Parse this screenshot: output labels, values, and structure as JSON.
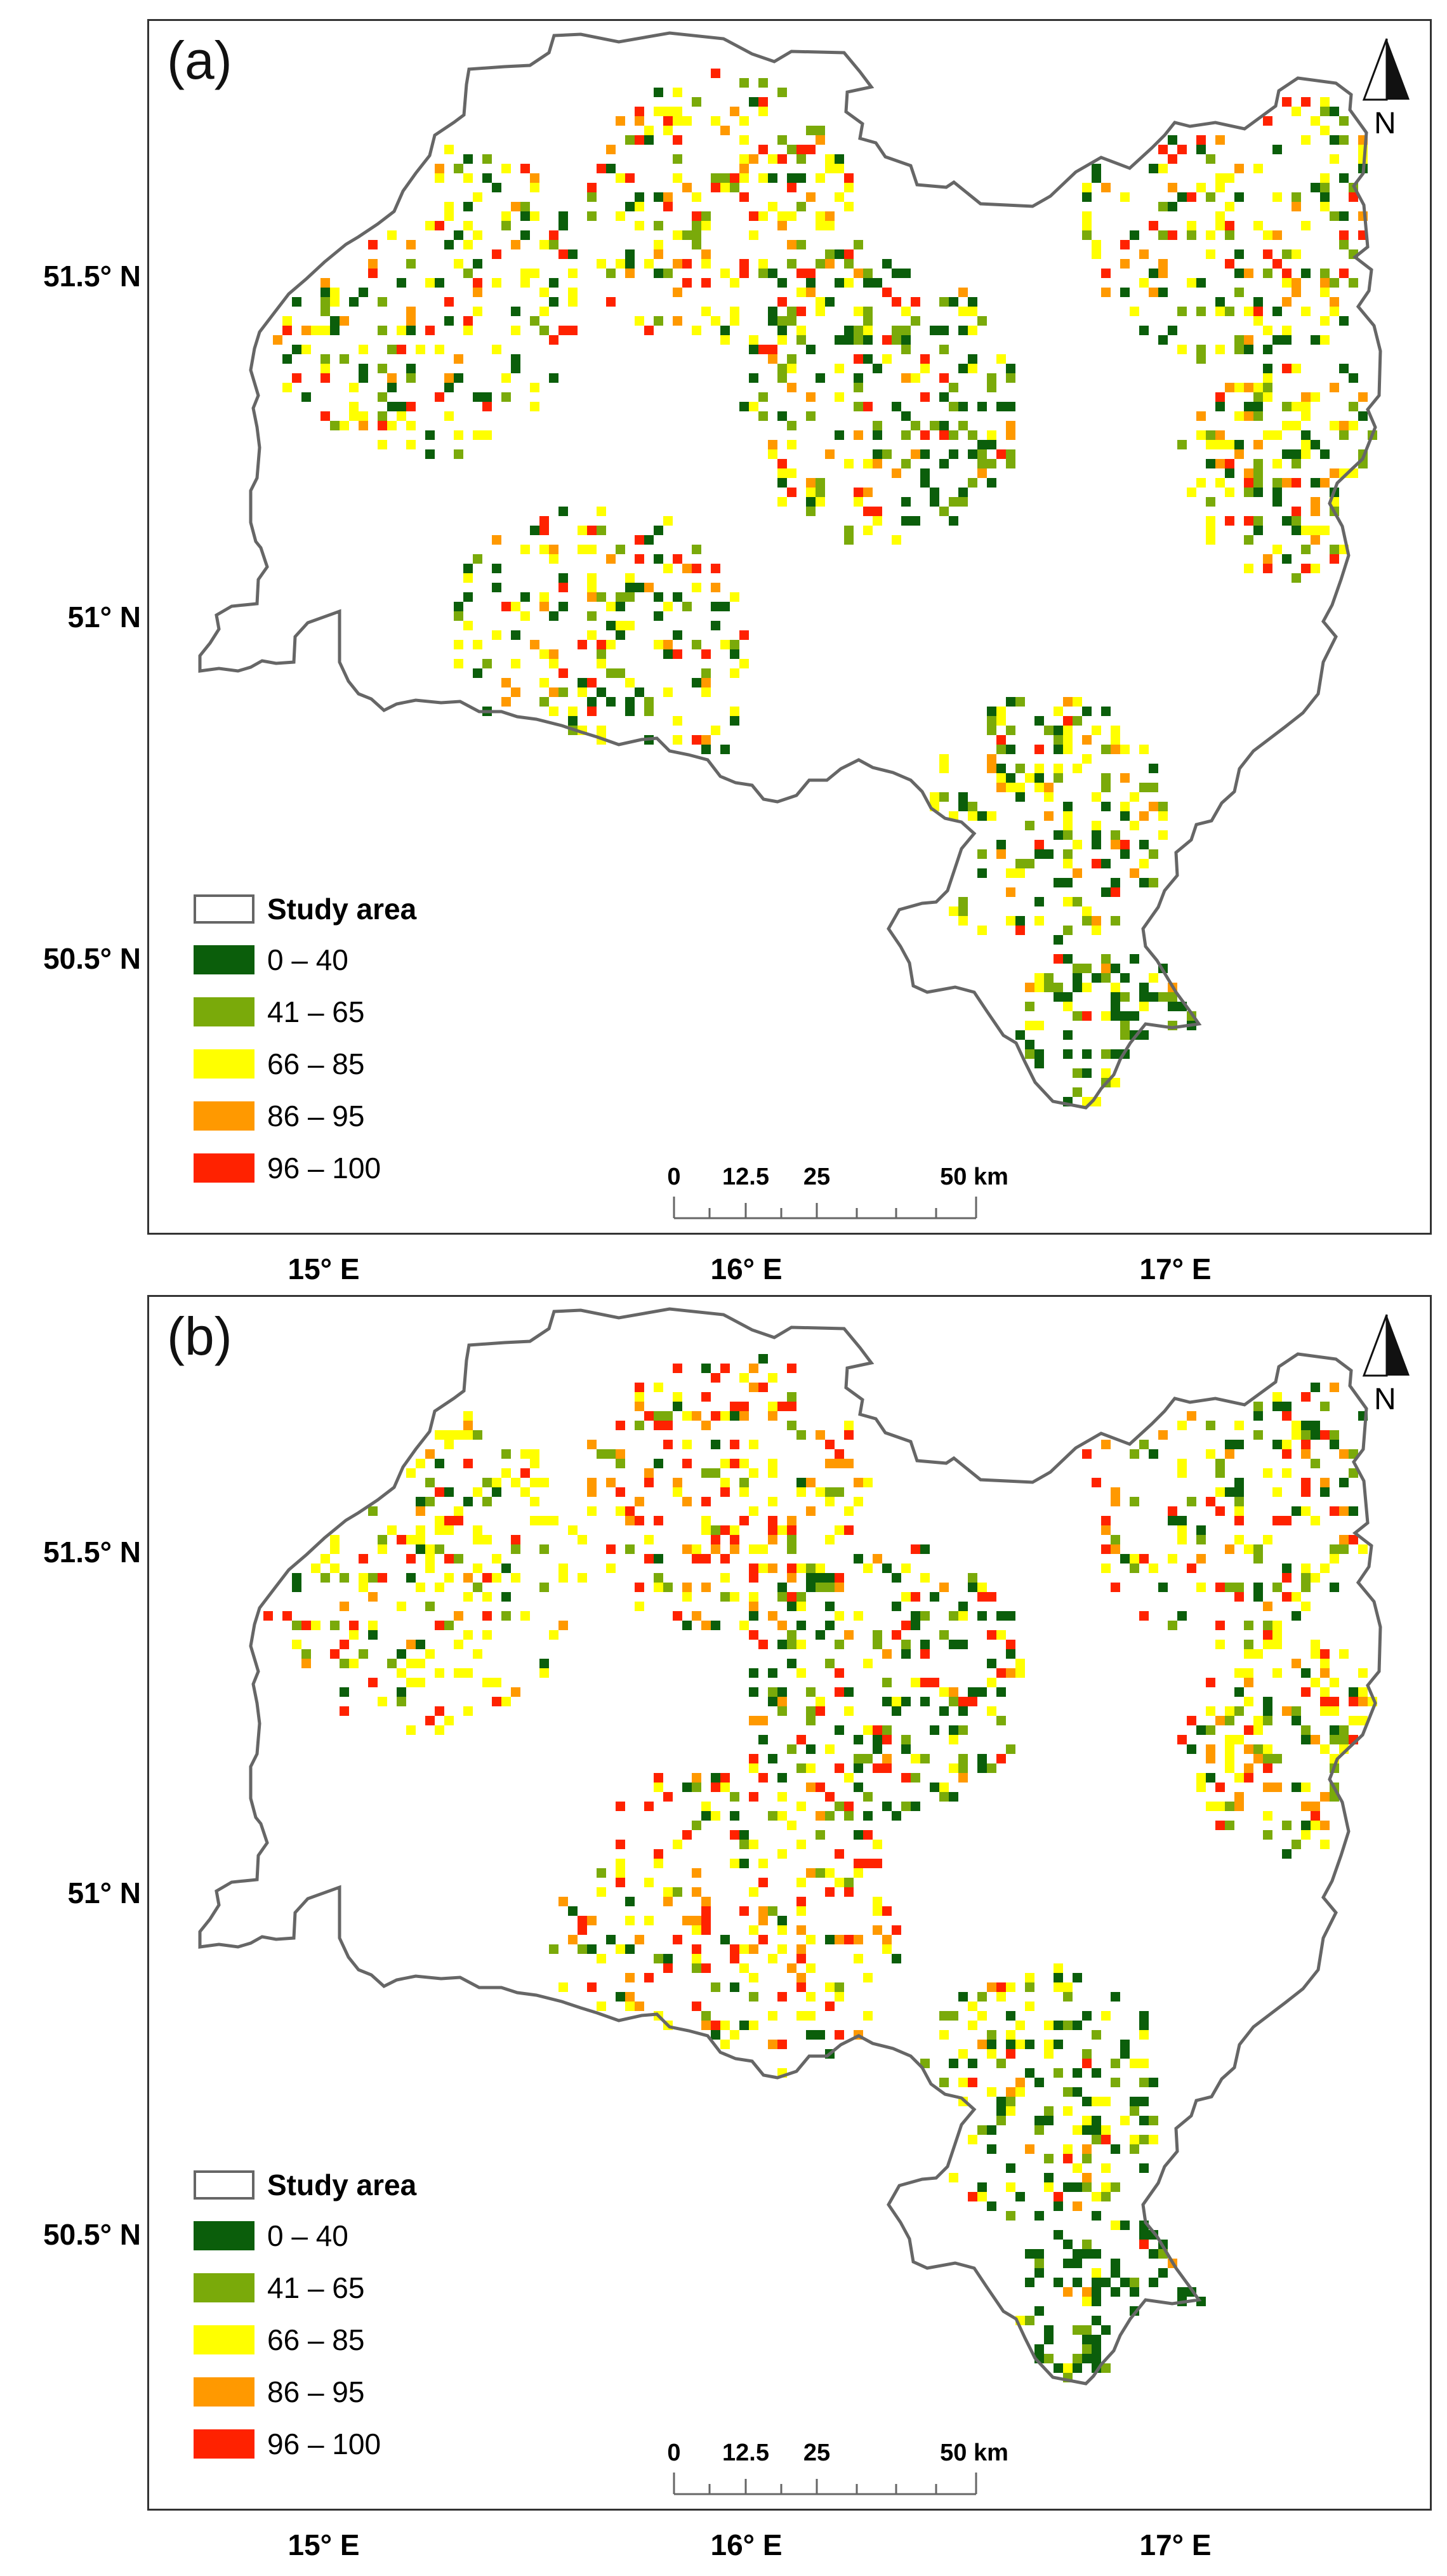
{
  "panels": [
    {
      "label": "(a)",
      "latitudes": [
        "51.5° N",
        "51° N",
        "50.5° N"
      ],
      "longitudes": [
        "15° E",
        "16° E",
        "17° E"
      ],
      "legend": {
        "outline_label": "Study area",
        "classes": [
          {
            "label": "0 – 40",
            "color": "#0b5e0b"
          },
          {
            "label": "41 – 65",
            "color": "#7aaa0a"
          },
          {
            "label": "66 – 85",
            "color": "#ffff00"
          },
          {
            "label": "86 – 95",
            "color": "#ff9900"
          },
          {
            "label": "96 – 100",
            "color": "#ff2200"
          }
        ]
      },
      "scale": {
        "labels": [
          "0",
          "12.5",
          "25",
          "50 km"
        ]
      },
      "north": "N"
    },
    {
      "label": "(b)",
      "latitudes": [
        "51.5° N",
        "51° N",
        "50.5° N"
      ],
      "longitudes": [
        "15° E",
        "16° E",
        "17° E"
      ],
      "legend": {
        "outline_label": "Study area",
        "classes": [
          {
            "label": "0 – 40",
            "color": "#0b5e0b"
          },
          {
            "label": "41 – 65",
            "color": "#7aaa0a"
          },
          {
            "label": "66 – 85",
            "color": "#ffff00"
          },
          {
            "label": "86 – 95",
            "color": "#ff9900"
          },
          {
            "label": "96 – 100",
            "color": "#ff2200"
          }
        ]
      },
      "scale": {
        "labels": [
          "0",
          "12.5",
          "25",
          "50 km"
        ]
      },
      "north": "N"
    }
  ],
  "colors": {
    "outline": "#666666",
    "frame": "#333333",
    "background": "#ffffff"
  }
}
